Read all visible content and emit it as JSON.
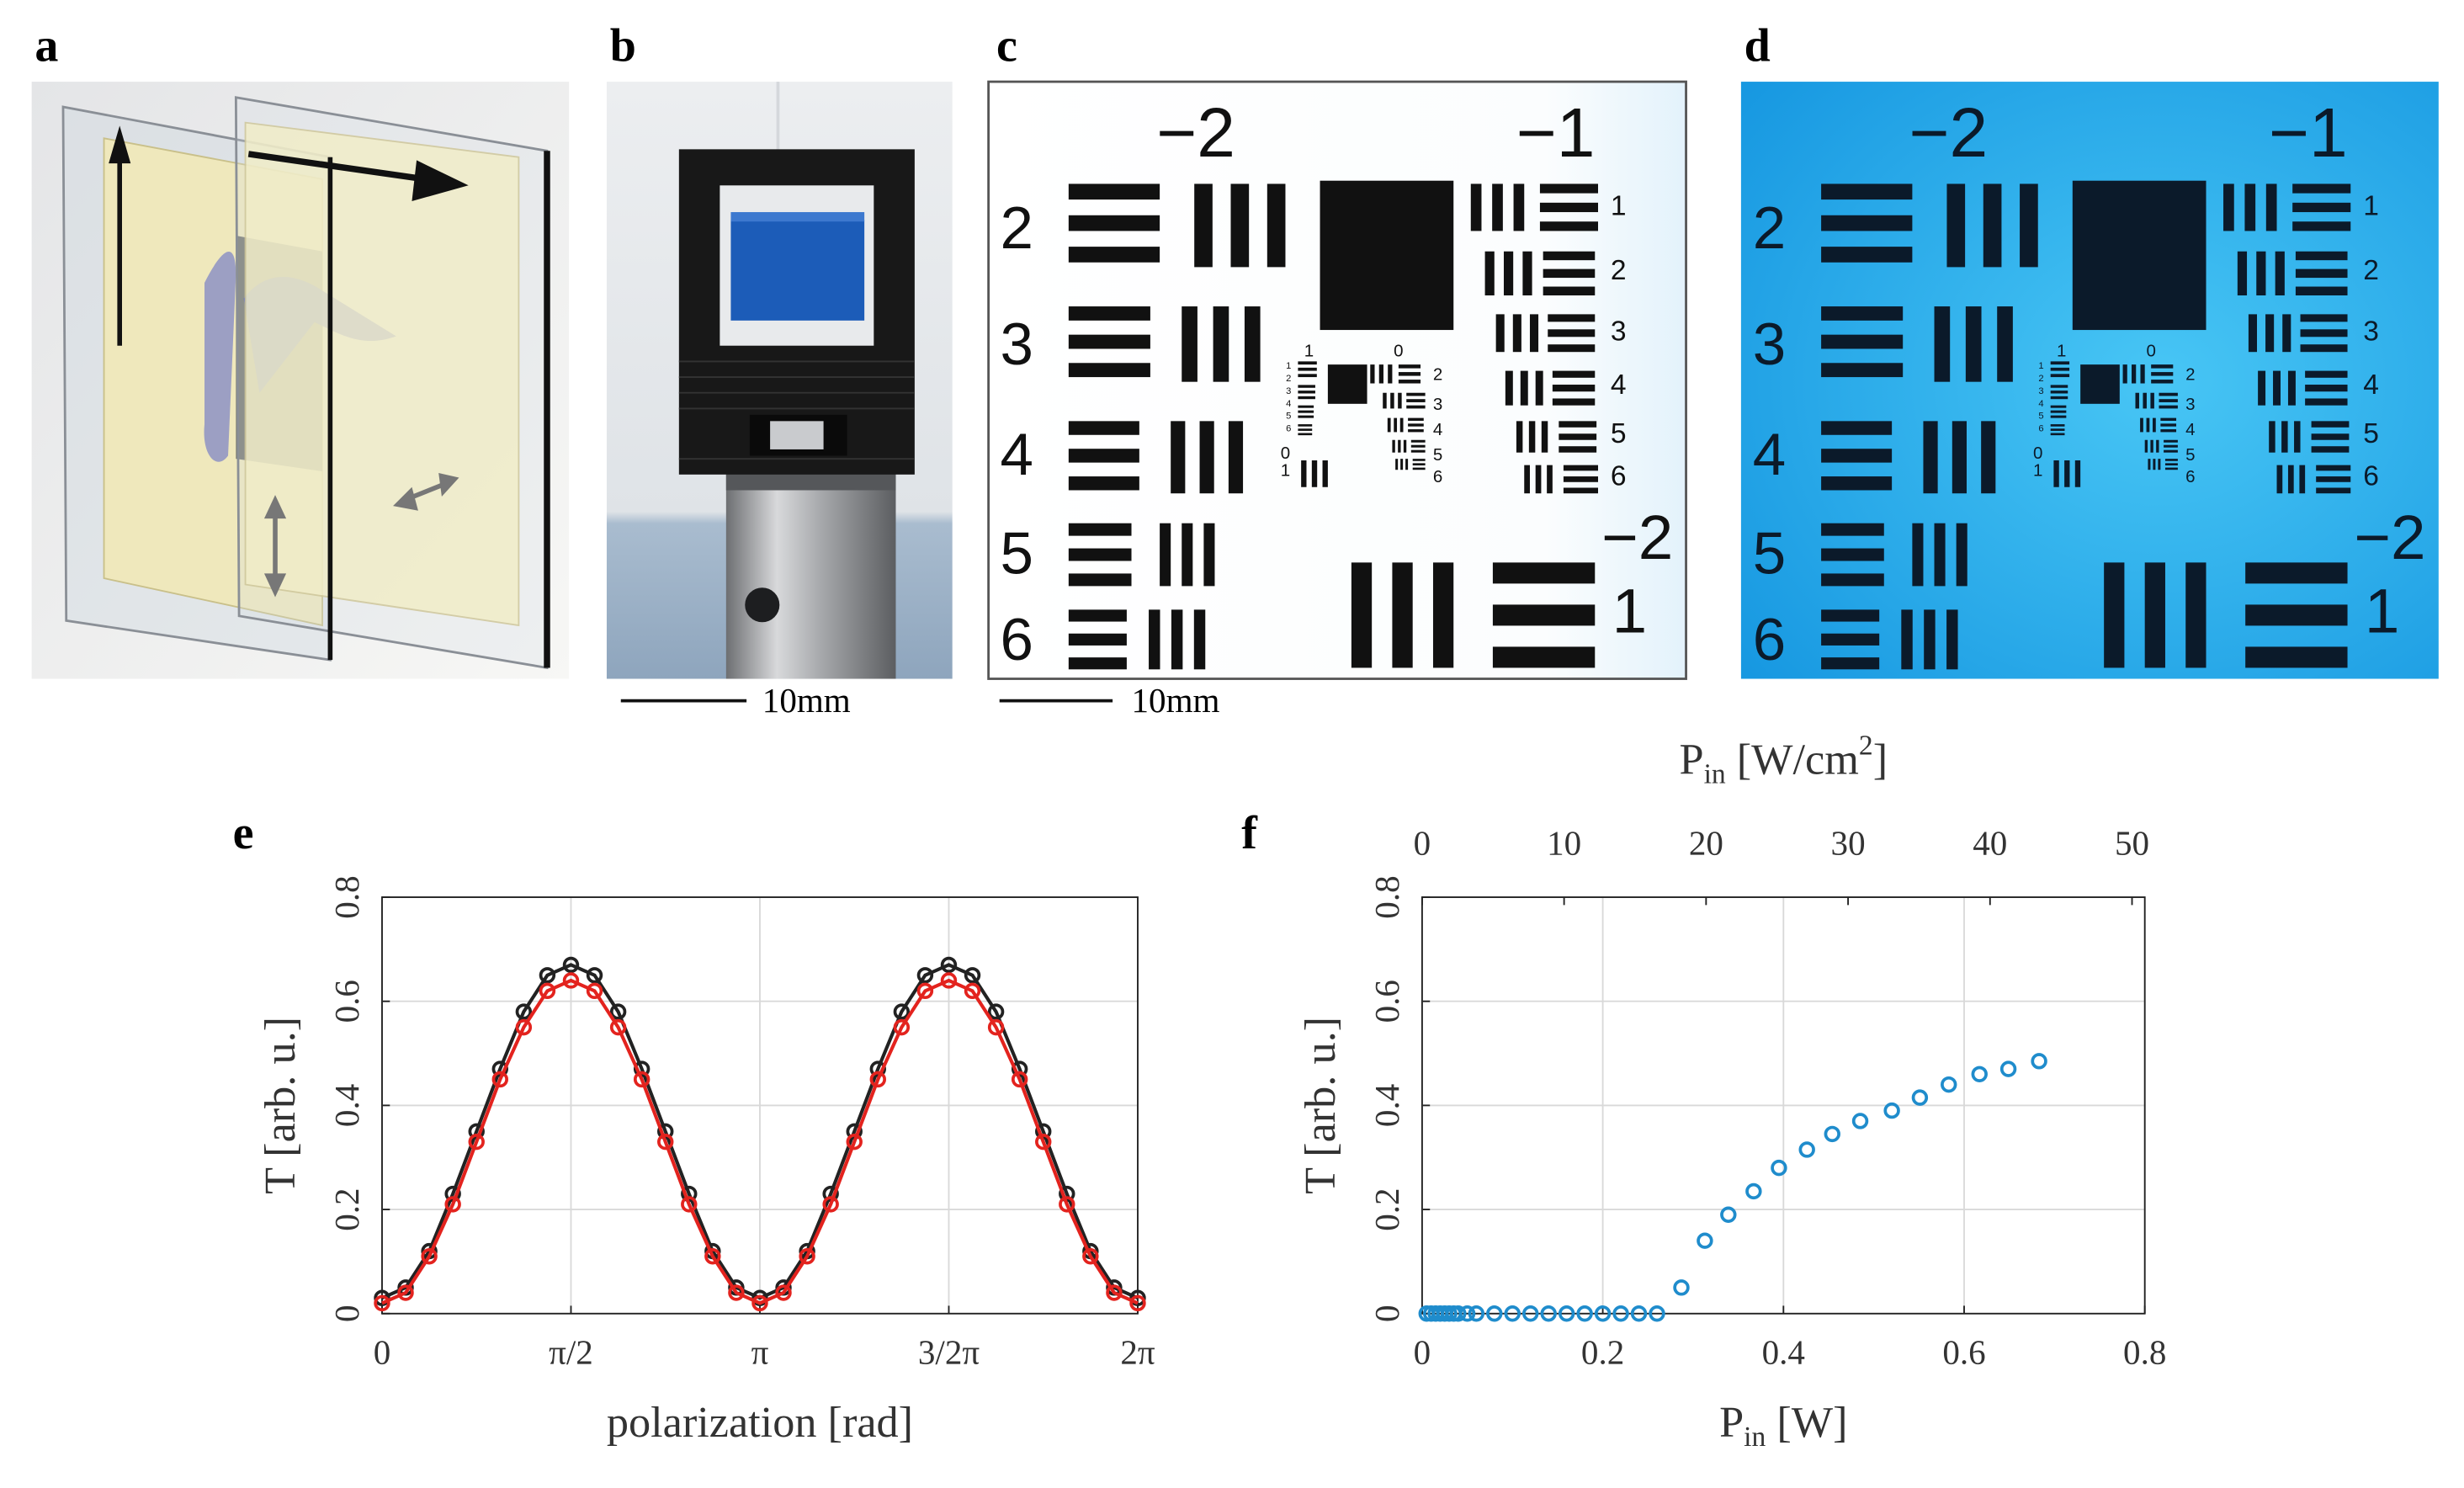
{
  "panels": {
    "labels": [
      "a",
      "b",
      "c",
      "d",
      "e",
      "f"
    ],
    "scale_bars": [
      "10mm",
      "10mm"
    ]
  },
  "target": {
    "large": [
      "−2",
      "−1"
    ],
    "left": [
      "2",
      "3",
      "4",
      "5",
      "6"
    ],
    "right": [
      "1",
      "2",
      "3",
      "4",
      "5",
      "6"
    ],
    "bottom": [
      "−2",
      "1"
    ],
    "small_top": [
      "1",
      "0"
    ],
    "small_left": [
      "1",
      "2",
      "3",
      "4",
      "5",
      "6"
    ],
    "small_right": [
      "2",
      "3",
      "4",
      "5",
      "6"
    ],
    "small_bottom": [
      "0",
      "1"
    ]
  },
  "chart_data": [
    {
      "type": "line",
      "ylabel": "T [arb. u.]",
      "xlabel": "polarization [rad]",
      "x": [
        0,
        0.1963,
        0.3927,
        0.589,
        0.7854,
        0.9817,
        1.1781,
        1.3744,
        1.5708,
        1.7671,
        1.9635,
        2.1598,
        2.3562,
        2.5525,
        2.7489,
        2.9452,
        3.1416,
        3.3379,
        3.5343,
        3.7306,
        3.927,
        4.1233,
        4.3197,
        4.516,
        4.7124,
        4.9087,
        5.1051,
        5.3014,
        5.4978,
        5.6941,
        5.8905,
        6.0868,
        6.2832
      ],
      "series": [
        {
          "color": "#222222",
          "values": [
            0.03,
            0.05,
            0.12,
            0.23,
            0.35,
            0.47,
            0.58,
            0.65,
            0.67,
            0.65,
            0.58,
            0.47,
            0.35,
            0.23,
            0.12,
            0.05,
            0.03,
            0.05,
            0.12,
            0.23,
            0.35,
            0.47,
            0.58,
            0.65,
            0.67,
            0.65,
            0.58,
            0.47,
            0.35,
            0.23,
            0.12,
            0.05,
            0.03
          ]
        },
        {
          "color": "#e3231e",
          "values": [
            0.02,
            0.04,
            0.11,
            0.21,
            0.33,
            0.45,
            0.55,
            0.62,
            0.64,
            0.62,
            0.55,
            0.45,
            0.33,
            0.21,
            0.11,
            0.04,
            0.02,
            0.04,
            0.11,
            0.21,
            0.33,
            0.45,
            0.55,
            0.62,
            0.64,
            0.62,
            0.55,
            0.45,
            0.33,
            0.21,
            0.11,
            0.04,
            0.02
          ]
        }
      ],
      "xlim": [
        0,
        6.2832
      ],
      "xticks": [
        0,
        {
          "value": 1.5708,
          "label": "π/2"
        },
        {
          "value": 3.1416,
          "label": "π"
        },
        {
          "value": 4.7124,
          "label": "3/2π"
        },
        {
          "value": 6.2832,
          "label": "2π"
        }
      ],
      "ylim": [
        0,
        0.8
      ],
      "yticks": [
        0,
        0.2,
        0.4,
        0.6,
        0.8
      ],
      "grid": true
    },
    {
      "type": "scatter",
      "ylabel": "T [arb. u.]",
      "xlabel": [
        "P",
        "in",
        " [W]"
      ],
      "x2label": [
        "P",
        "in",
        " [W/cm",
        "2",
        "]"
      ],
      "x": [
        0.005,
        0.01,
        0.015,
        0.02,
        0.025,
        0.03,
        0.035,
        0.04,
        0.05,
        0.06,
        0.08,
        0.1,
        0.12,
        0.14,
        0.16,
        0.18,
        0.2,
        0.22,
        0.24,
        0.26,
        0.287,
        0.313,
        0.339,
        0.367,
        0.395,
        0.426,
        0.454,
        0.485,
        0.52,
        0.551,
        0.583,
        0.617,
        0.649,
        0.683
      ],
      "series": [
        {
          "color": "#1f8ccc",
          "values": [
            0,
            0,
            0,
            0,
            0,
            0,
            0,
            0,
            0,
            0,
            0,
            0,
            0,
            0,
            0,
            0,
            0,
            0,
            0,
            0,
            0.05,
            0.14,
            0.19,
            0.235,
            0.28,
            0.315,
            0.345,
            0.37,
            0.39,
            0.415,
            0.44,
            0.46,
            0.47,
            0.485
          ]
        }
      ],
      "xlim": [
        0,
        0.8
      ],
      "xticks": [
        0,
        0.2,
        0.4,
        0.6,
        0.8
      ],
      "x2lim": [
        0,
        50.9
      ],
      "x2ticks": [
        0,
        10,
        20,
        30,
        40,
        50
      ],
      "ylim": [
        0,
        0.8
      ],
      "yticks": [
        0,
        0.2,
        0.4,
        0.6,
        0.8
      ],
      "grid": true
    }
  ]
}
